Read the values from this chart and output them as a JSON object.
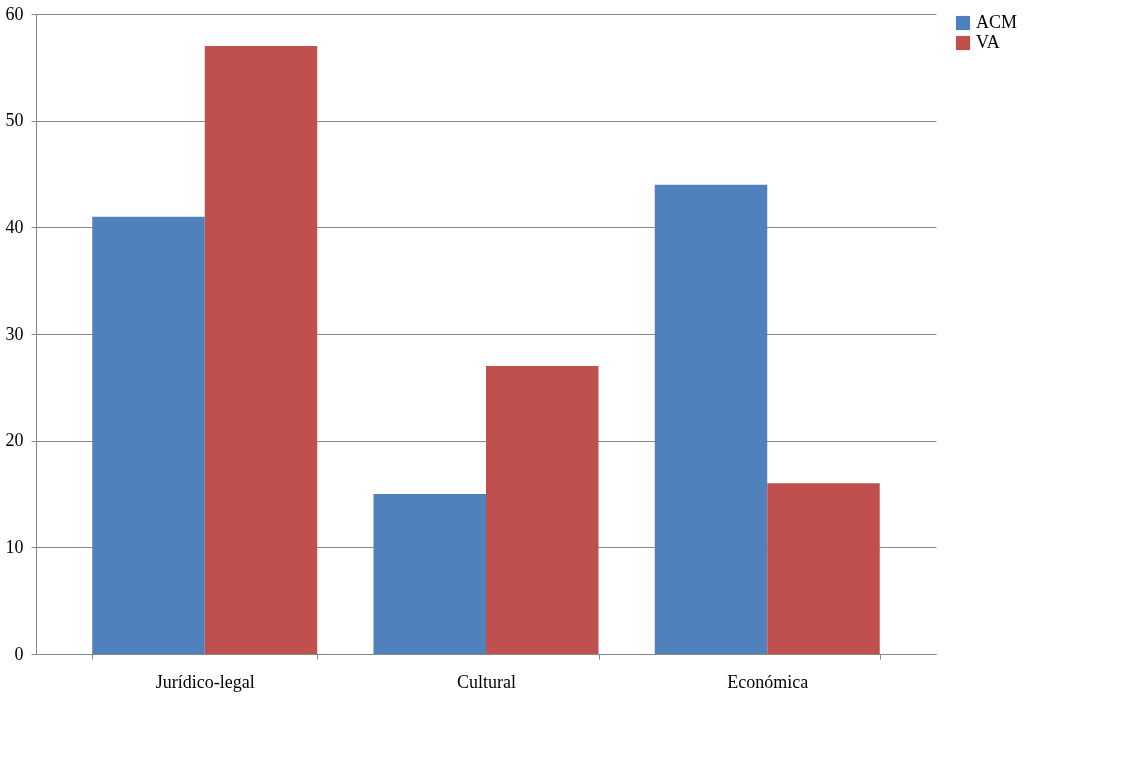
{
  "chart_data": {
    "type": "bar",
    "categories": [
      "Jurídico-legal",
      "Cultural",
      "Económica"
    ],
    "series": [
      {
        "name": "ACM",
        "color": "#4f81bd",
        "values": [
          41,
          15,
          44
        ]
      },
      {
        "name": "VA",
        "color": "#c0504d",
        "values": [
          57,
          27,
          16
        ]
      }
    ],
    "ylim": [
      0,
      60
    ],
    "yticks": [
      0,
      10,
      20,
      30,
      40,
      50,
      60
    ],
    "grid": "y",
    "legend": "right"
  }
}
